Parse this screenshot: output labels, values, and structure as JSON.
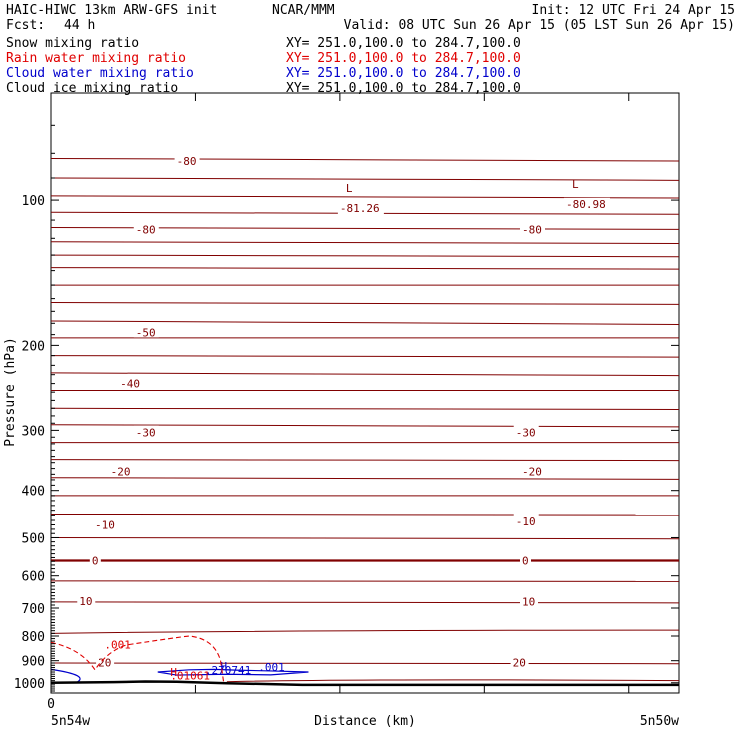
{
  "header": {
    "model": "HAIC-HIWC 13km ARW-GFS init",
    "org": "NCAR/MMM",
    "init": "Init: 12 UTC Fri 24 Apr 15",
    "fcst_label": "Fcst:",
    "fcst_value": "44 h",
    "valid": "Valid: 08 UTC Sun 26 Apr 15 (05 LST Sun 26 Apr 15)"
  },
  "fields": [
    {
      "label": "Snow mixing ratio",
      "xy": "XY= 251.0,100.0 to 284.7,100.0",
      "color": "#000000"
    },
    {
      "label": "Rain water mixing ratio",
      "xy": "XY= 251.0,100.0 to 284.7,100.0",
      "color": "#e00000"
    },
    {
      "label": "Cloud water mixing ratio",
      "xy": "XY= 251.0,100.0 to 284.7,100.0",
      "color": "#0000cc"
    },
    {
      "label": "Cloud ice mixing ratio",
      "xy": "XY= 251.0,100.0 to 284.7,100.0",
      "color": "#000000"
    }
  ],
  "chart_data": {
    "type": "line",
    "xlabel": "Distance (km)",
    "ylabel": "Pressure (hPa)",
    "x_tick_zero": "0",
    "x_left": "5n54w",
    "x_right": "5n50w",
    "ylim": [
      1050,
      60
    ],
    "y_ticks": [
      "100",
      "200",
      "300",
      "400",
      "500",
      "600",
      "700",
      "800",
      "900",
      "1000"
    ],
    "y_tick_values": [
      100,
      200,
      300,
      400,
      500,
      600,
      700,
      800,
      900,
      1000
    ],
    "temperature_isotherms": {
      "color": "#800000",
      "labels": [
        {
          "text": "-80",
          "x": 0.2,
          "p": 83
        },
        {
          "text": "-80",
          "x": 0.135,
          "p": 115
        },
        {
          "text": "-80",
          "x": 0.75,
          "p": 115
        },
        {
          "text": "-50",
          "x": 0.135,
          "p": 188
        },
        {
          "text": "-40",
          "x": 0.11,
          "p": 240
        },
        {
          "text": "-30",
          "x": 0.135,
          "p": 303
        },
        {
          "text": "-30",
          "x": 0.74,
          "p": 303
        },
        {
          "text": "-20",
          "x": 0.095,
          "p": 365
        },
        {
          "text": "-20",
          "x": 0.75,
          "p": 365
        },
        {
          "text": "-10",
          "x": 0.07,
          "p": 470
        },
        {
          "text": "-10",
          "x": 0.74,
          "p": 462
        },
        {
          "text": "0",
          "x": 0.065,
          "p": 558
        },
        {
          "text": "0",
          "x": 0.75,
          "p": 558
        },
        {
          "text": "10",
          "x": 0.045,
          "p": 677
        },
        {
          "text": "10",
          "x": 0.75,
          "p": 678
        },
        {
          "text": "20",
          "x": 0.075,
          "p": 907
        },
        {
          "text": "20",
          "x": 0.735,
          "p": 907
        }
      ],
      "extrema": [
        {
          "mark": "L",
          "value": "-81.26",
          "x": 0.46,
          "p": 100
        },
        {
          "mark": "L",
          "value": "-80.98",
          "x": 0.82,
          "p": 98
        }
      ]
    },
    "rain_water": {
      "color": "#e00000",
      "label": ".001",
      "max_mark": "H",
      "max_value": ".01061"
    },
    "cloud_water": {
      "color": "#0000cc",
      "label": ".001",
      "max_mark": "H",
      "max_value": ".270741"
    },
    "terrain_pressure": [
      {
        "x": 0.0,
        "p": 1000
      },
      {
        "x": 0.1,
        "p": 997
      },
      {
        "x": 0.15,
        "p": 994
      },
      {
        "x": 0.2,
        "p": 995
      },
      {
        "x": 0.28,
        "p": 1002
      },
      {
        "x": 0.4,
        "p": 1010
      },
      {
        "x": 1.0,
        "p": 1010
      }
    ]
  }
}
